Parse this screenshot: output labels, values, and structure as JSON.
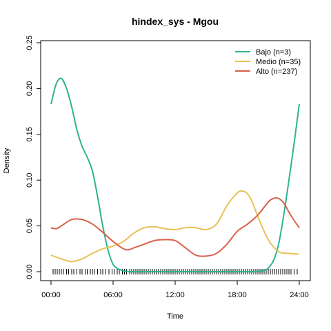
{
  "chart_data": {
    "type": "line",
    "title": "hindex_sys - Mgou",
    "xlabel": "Time",
    "ylabel": "Density",
    "xlim": [
      0,
      24
    ],
    "ylim": [
      0,
      0.25
    ],
    "xticks": [
      0,
      6,
      12,
      18,
      24
    ],
    "xtick_labels": [
      "00:00",
      "06:00",
      "12:00",
      "18:00",
      "24:00"
    ],
    "yticks": [
      0.0,
      0.05,
      0.1,
      0.15,
      0.2,
      0.25
    ],
    "ytick_labels": [
      "0.00",
      "0.05",
      "0.10",
      "0.15",
      "0.20",
      "0.25"
    ],
    "legend_position": "top-right",
    "grid": false,
    "series": [
      {
        "name": "Bajo (n=3)",
        "color": "#2db38f",
        "x": [
          0,
          0.5,
          1,
          1.5,
          2,
          2.5,
          3,
          3.5,
          4,
          4.5,
          5,
          5.5,
          6,
          6.5,
          7,
          7.5,
          8,
          9,
          10,
          12,
          14,
          16,
          18,
          19.5,
          20.5,
          21,
          21.5,
          22,
          22.5,
          23,
          23.5,
          24
        ],
        "y": [
          0.183,
          0.205,
          0.211,
          0.2,
          0.18,
          0.155,
          0.137,
          0.125,
          0.11,
          0.082,
          0.05,
          0.024,
          0.008,
          0.003,
          0.001,
          0.0,
          0.0,
          0.0,
          0.0,
          0.0,
          0.0,
          0.0,
          0.0,
          0.0,
          0.001,
          0.004,
          0.012,
          0.03,
          0.062,
          0.1,
          0.14,
          0.183
        ]
      },
      {
        "name": "Medio (n=35)",
        "color": "#e8c056",
        "x": [
          0,
          1,
          2,
          3,
          4,
          5,
          6,
          7,
          8,
          9,
          10,
          11,
          12,
          13,
          14,
          15,
          16,
          17,
          18,
          18.5,
          19,
          19.5,
          20,
          21,
          22,
          23,
          24
        ],
        "y": [
          0.018,
          0.014,
          0.011,
          0.014,
          0.02,
          0.025,
          0.028,
          0.033,
          0.042,
          0.048,
          0.049,
          0.047,
          0.046,
          0.048,
          0.048,
          0.046,
          0.052,
          0.072,
          0.086,
          0.088,
          0.085,
          0.075,
          0.06,
          0.035,
          0.022,
          0.02,
          0.019
        ]
      },
      {
        "name": "Alto (n=237)",
        "color": "#d9604a",
        "x": [
          0,
          0.5,
          1,
          2,
          3,
          4,
          5,
          6,
          7,
          7.5,
          8,
          9,
          10,
          11,
          12,
          13,
          14,
          15,
          16,
          17,
          18,
          19,
          20,
          21,
          21.5,
          22,
          22.5,
          23,
          23.5,
          24
        ],
        "y": [
          0.048,
          0.047,
          0.05,
          0.057,
          0.057,
          0.052,
          0.043,
          0.033,
          0.025,
          0.024,
          0.026,
          0.03,
          0.034,
          0.035,
          0.034,
          0.026,
          0.018,
          0.017,
          0.02,
          0.03,
          0.044,
          0.052,
          0.062,
          0.076,
          0.08,
          0.08,
          0.075,
          0.065,
          0.056,
          0.048
        ]
      }
    ],
    "rug_x": [
      0.2,
      0.4,
      0.6,
      0.8,
      1.0,
      1.2,
      1.5,
      1.7,
      2.0,
      2.2,
      2.5,
      2.8,
      3.0,
      3.3,
      3.5,
      3.8,
      4.0,
      4.2,
      4.5,
      4.8,
      5.0,
      5.3,
      5.6,
      5.9,
      6.1,
      6.4,
      6.6,
      6.9,
      7.1,
      7.3,
      7.6,
      7.8,
      8.0,
      8.2,
      8.4,
      8.6,
      8.8,
      9.0,
      9.2,
      9.4,
      9.6,
      9.8,
      10.0,
      10.2,
      10.4,
      10.6,
      10.8,
      11.0,
      11.2,
      11.4,
      11.6,
      11.8,
      12.0,
      12.2,
      12.4,
      12.6,
      12.8,
      13.0,
      13.2,
      13.4,
      13.6,
      13.8,
      14.0,
      14.2,
      14.4,
      14.6,
      14.8,
      15.0,
      15.2,
      15.4,
      15.6,
      15.8,
      16.0,
      16.2,
      16.4,
      16.6,
      16.8,
      17.0,
      17.2,
      17.4,
      17.6,
      17.8,
      18.0,
      18.2,
      18.4,
      18.6,
      18.8,
      19.0,
      19.2,
      19.4,
      19.6,
      19.8,
      20.0,
      20.2,
      20.4,
      20.6,
      20.8,
      21.0,
      21.2,
      21.4,
      21.6,
      21.8,
      22.0,
      22.2,
      22.4,
      22.6,
      22.8,
      23.0,
      23.2,
      23.5,
      23.8
    ]
  }
}
